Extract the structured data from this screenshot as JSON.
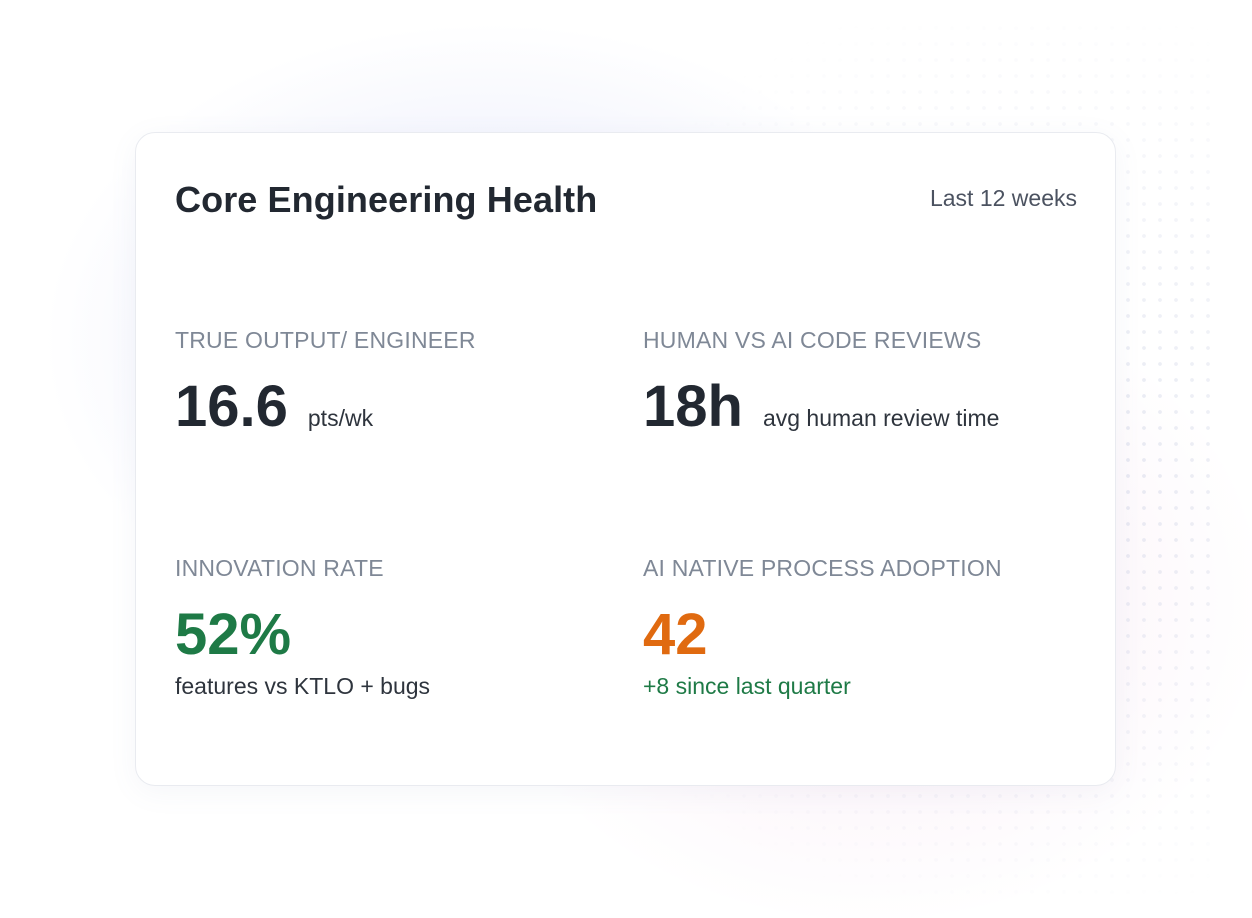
{
  "card": {
    "title": "Core Engineering Health",
    "period": "Last 12 weeks"
  },
  "metrics": {
    "output": {
      "label": "TRUE OUTPUT/ ENGINEER",
      "value": "16.6",
      "unit": "pts/wk"
    },
    "reviews": {
      "label": "HUMAN VS AI CODE REVIEWS",
      "value": "18h",
      "unit": "avg human review time"
    },
    "innovation": {
      "label": "INNOVATION RATE",
      "value": "52%",
      "sub": "features vs KTLO + bugs"
    },
    "adoption": {
      "label": "AI NATIVE PROCESS ADOPTION",
      "value": "42",
      "sub": "+8 since last quarter"
    }
  },
  "colors": {
    "positive": "#1e7a46",
    "warning": "#e06a10",
    "text": "#222831",
    "muted": "#7f8896"
  }
}
